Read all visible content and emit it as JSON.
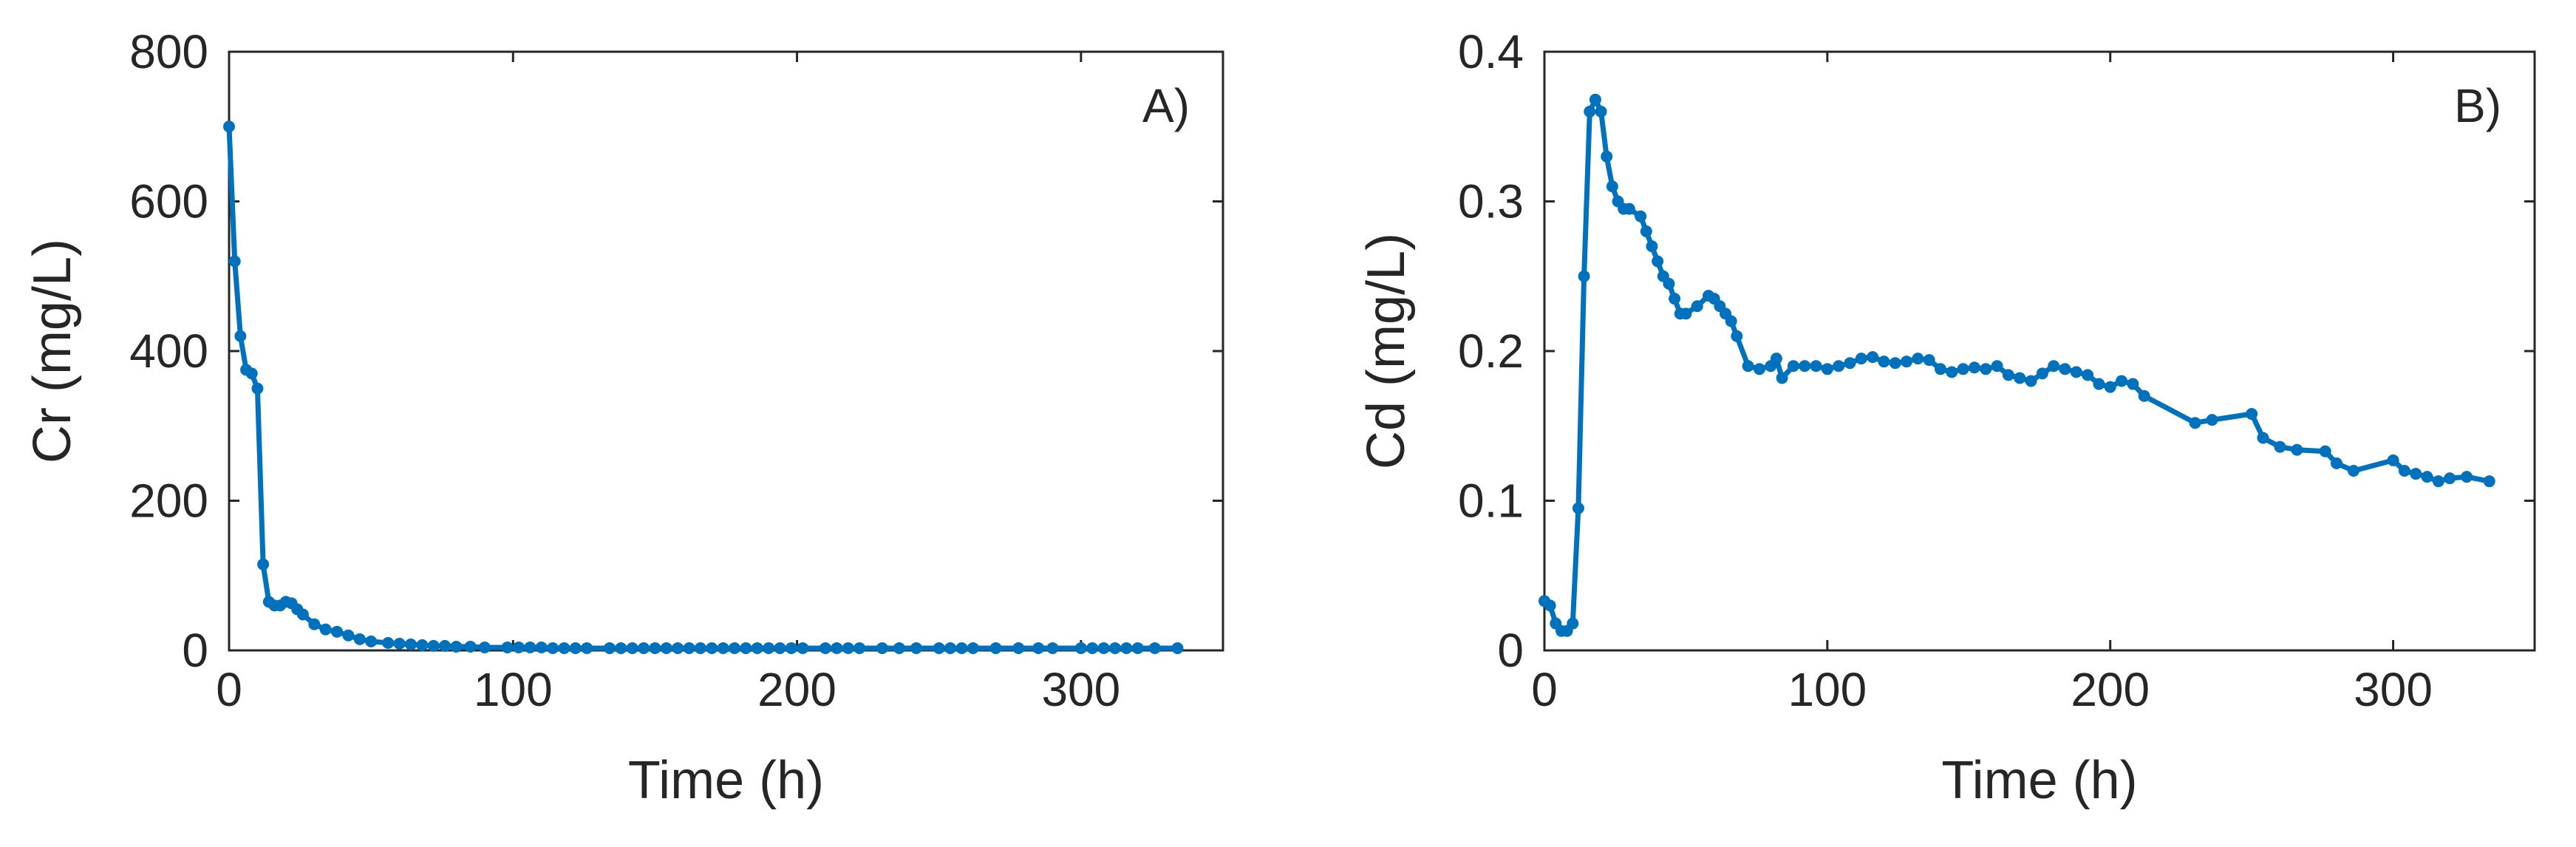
{
  "chart_data": [
    {
      "type": "line",
      "panel_label": "A)",
      "xlabel": "Time (h)",
      "ylabel": "Cr (mg/L)",
      "xlim": [
        0,
        350
      ],
      "ylim": [
        0,
        800
      ],
      "xticks": [
        0,
        100,
        200,
        300
      ],
      "yticks": [
        0,
        200,
        400,
        600,
        800
      ],
      "grid": false,
      "color": "#0072BD",
      "series": [
        {
          "x": [
            0,
            2,
            4,
            6,
            8,
            10,
            12,
            14,
            16,
            18,
            20,
            22,
            24,
            26,
            30,
            34,
            38,
            42,
            46,
            50,
            56,
            60,
            64,
            68,
            72,
            76,
            80,
            85,
            90,
            98,
            102,
            106,
            110,
            114,
            118,
            122,
            126,
            134,
            138,
            142,
            146,
            150,
            154,
            158,
            162,
            166,
            170,
            174,
            178,
            182,
            186,
            190,
            194,
            198,
            202,
            210,
            214,
            218,
            222,
            230,
            236,
            242,
            250,
            254,
            258,
            262,
            270,
            278,
            285,
            290,
            300,
            304,
            308,
            312,
            316,
            320,
            326,
            334
          ],
          "y": [
            700,
            520,
            420,
            375,
            370,
            350,
            115,
            65,
            60,
            60,
            65,
            63,
            55,
            48,
            35,
            28,
            25,
            20,
            15,
            12,
            10,
            9,
            8,
            7,
            6,
            6,
            5,
            5,
            4,
            4,
            4,
            4,
            4,
            3,
            3,
            3,
            3,
            3,
            3,
            3,
            3,
            3,
            3,
            3,
            3,
            3,
            3,
            3,
            3,
            3,
            3,
            3,
            3,
            3,
            3,
            3,
            3,
            3,
            3,
            3,
            3,
            3,
            3,
            3,
            3,
            3,
            3,
            3,
            3,
            3,
            3,
            3,
            3,
            3,
            3,
            3,
            3,
            3
          ]
        }
      ]
    },
    {
      "type": "line",
      "panel_label": "B)",
      "xlabel": "Time (h)",
      "ylabel": "Cd (mg/L)",
      "xlim": [
        0,
        350
      ],
      "ylim": [
        0,
        0.4
      ],
      "xticks": [
        0,
        100,
        200,
        300
      ],
      "yticks": [
        0,
        0.1,
        0.2,
        0.3,
        0.4
      ],
      "grid": false,
      "color": "#0072BD",
      "series": [
        {
          "x": [
            0,
            2,
            4,
            6,
            8,
            10,
            12,
            14,
            16,
            18,
            20,
            22,
            24,
            26,
            28,
            30,
            34,
            36,
            38,
            40,
            42,
            44,
            46,
            48,
            50,
            54,
            58,
            60,
            62,
            64,
            66,
            68,
            72,
            76,
            80,
            82,
            84,
            88,
            92,
            96,
            100,
            104,
            108,
            112,
            116,
            120,
            124,
            128,
            132,
            136,
            140,
            144,
            148,
            152,
            156,
            160,
            164,
            168,
            172,
            176,
            180,
            184,
            188,
            192,
            196,
            200,
            204,
            208,
            212,
            230,
            236,
            250,
            254,
            260,
            266,
            276,
            280,
            286,
            300,
            304,
            308,
            312,
            316,
            320,
            326,
            334
          ],
          "y": [
            0.033,
            0.03,
            0.018,
            0.013,
            0.013,
            0.018,
            0.095,
            0.25,
            0.36,
            0.368,
            0.36,
            0.33,
            0.31,
            0.3,
            0.295,
            0.295,
            0.29,
            0.28,
            0.27,
            0.26,
            0.25,
            0.245,
            0.235,
            0.225,
            0.225,
            0.23,
            0.237,
            0.235,
            0.23,
            0.225,
            0.22,
            0.21,
            0.19,
            0.188,
            0.19,
            0.195,
            0.182,
            0.19,
            0.19,
            0.19,
            0.188,
            0.19,
            0.192,
            0.195,
            0.196,
            0.193,
            0.192,
            0.193,
            0.195,
            0.194,
            0.188,
            0.186,
            0.188,
            0.189,
            0.188,
            0.19,
            0.184,
            0.182,
            0.18,
            0.185,
            0.19,
            0.188,
            0.186,
            0.184,
            0.178,
            0.176,
            0.18,
            0.178,
            0.17,
            0.152,
            0.154,
            0.158,
            0.142,
            0.136,
            0.134,
            0.133,
            0.125,
            0.12,
            0.127,
            0.12,
            0.118,
            0.116,
            0.113,
            0.115,
            0.116,
            0.113
          ]
        }
      ]
    }
  ]
}
